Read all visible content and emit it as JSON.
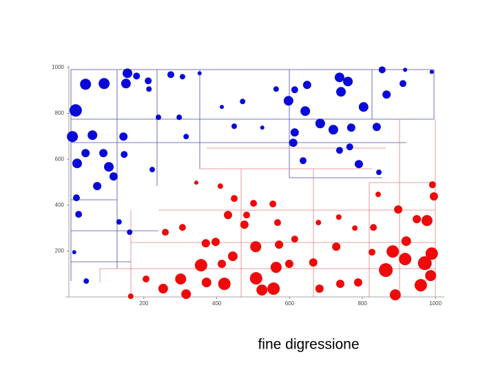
{
  "chart_data": {
    "type": "scatter",
    "caption": "fine digressione",
    "xlim": [
      0,
      1000
    ],
    "ylim": [
      0,
      1000
    ],
    "xticks": [
      200,
      400,
      600,
      800,
      1000
    ],
    "yticks": [
      200,
      400,
      600,
      800,
      1000
    ],
    "series": [
      {
        "color": "#0a0ad8",
        "x": [
          40,
          91,
          155,
          151,
          180,
          212,
          214,
          274,
          306,
          353,
          13,
          4,
          59,
          89,
          40,
          17,
          104,
          72,
          117,
          144,
          146,
          223,
          316,
          15,
          21,
          132,
          161,
          9,
          42,
          854,
          917,
          990,
          737,
          741,
          760,
          648,
          614,
          597,
          643,
          803,
          866,
          911,
          563,
          471,
          684,
          720,
          839,
          769,
          614,
          610,
          765,
          790,
          737,
          637,
          845,
          448,
          414,
          525,
          297,
          240
        ],
        "y": [
          927,
          930,
          975,
          930,
          963,
          942,
          906,
          969,
          960,
          975,
          813,
          699,
          705,
          627,
          627,
          582,
          567,
          483,
          525,
          699,
          621,
          555,
          699,
          432,
          360,
          327,
          282,
          195,
          69,
          990,
          990,
          981,
          957,
          894,
          939,
          924,
          903,
          855,
          810,
          828,
          882,
          930,
          906,
          852,
          756,
          729,
          741,
          738,
          717,
          672,
          654,
          579,
          639,
          594,
          543,
          744,
          828,
          738,
          783,
          783
        ],
        "sizes": [
          8,
          8,
          7,
          7,
          5,
          5,
          4,
          5,
          4,
          3,
          9,
          8,
          7,
          6,
          6,
          7,
          7,
          6,
          6,
          6,
          5,
          4,
          4,
          5,
          5,
          4,
          4,
          3,
          4,
          5,
          3,
          3,
          7,
          7,
          7,
          6,
          5,
          7,
          7,
          7,
          6,
          5,
          4,
          4,
          7,
          7,
          6,
          6,
          6,
          6,
          5,
          6,
          5,
          5,
          4,
          4,
          3,
          3,
          4,
          4
        ]
      },
      {
        "color": "#ee0a0a",
        "x": [
          890,
          960,
          987,
          971,
          990,
          917,
          864,
          920,
          883,
          977,
          949,
          898,
          996,
          992,
          843,
          830,
          788,
          739,
          682,
          665,
          728,
          826,
          571,
          599,
          563,
          508,
          524,
          556,
          507,
          444,
          397,
          370,
          357,
          372,
          421,
          414,
          316,
          301,
          253,
          206,
          164,
          476,
          431,
          482,
          501,
          448,
          554,
          567,
          614,
          679,
          735,
          306,
          259,
          344,
          410,
          779
        ],
        "y": [
          9,
          51,
          93,
          147,
          189,
          165,
          117,
          243,
          198,
          333,
          339,
          381,
          438,
          489,
          447,
          303,
          63,
          57,
          36,
          150,
          219,
          195,
          228,
          144,
          129,
          81,
          30,
          36,
          219,
          177,
          240,
          234,
          138,
          63,
          57,
          144,
          12,
          78,
          36,
          78,
          3,
          315,
          357,
          357,
          408,
          429,
          405,
          324,
          252,
          324,
          348,
          303,
          282,
          498,
          483,
          300
        ],
        "sizes": [
          8,
          9,
          8,
          10,
          9,
          9,
          10,
          7,
          9,
          8,
          6,
          6,
          6,
          5,
          4,
          5,
          6,
          6,
          6,
          6,
          6,
          5,
          6,
          6,
          8,
          9,
          8,
          9,
          8,
          7,
          6,
          6,
          9,
          7,
          9,
          6,
          7,
          8,
          7,
          5,
          4,
          6,
          6,
          5,
          5,
          5,
          5,
          5,
          5,
          4,
          4,
          5,
          5,
          3,
          4,
          4
        ]
      }
    ]
  }
}
